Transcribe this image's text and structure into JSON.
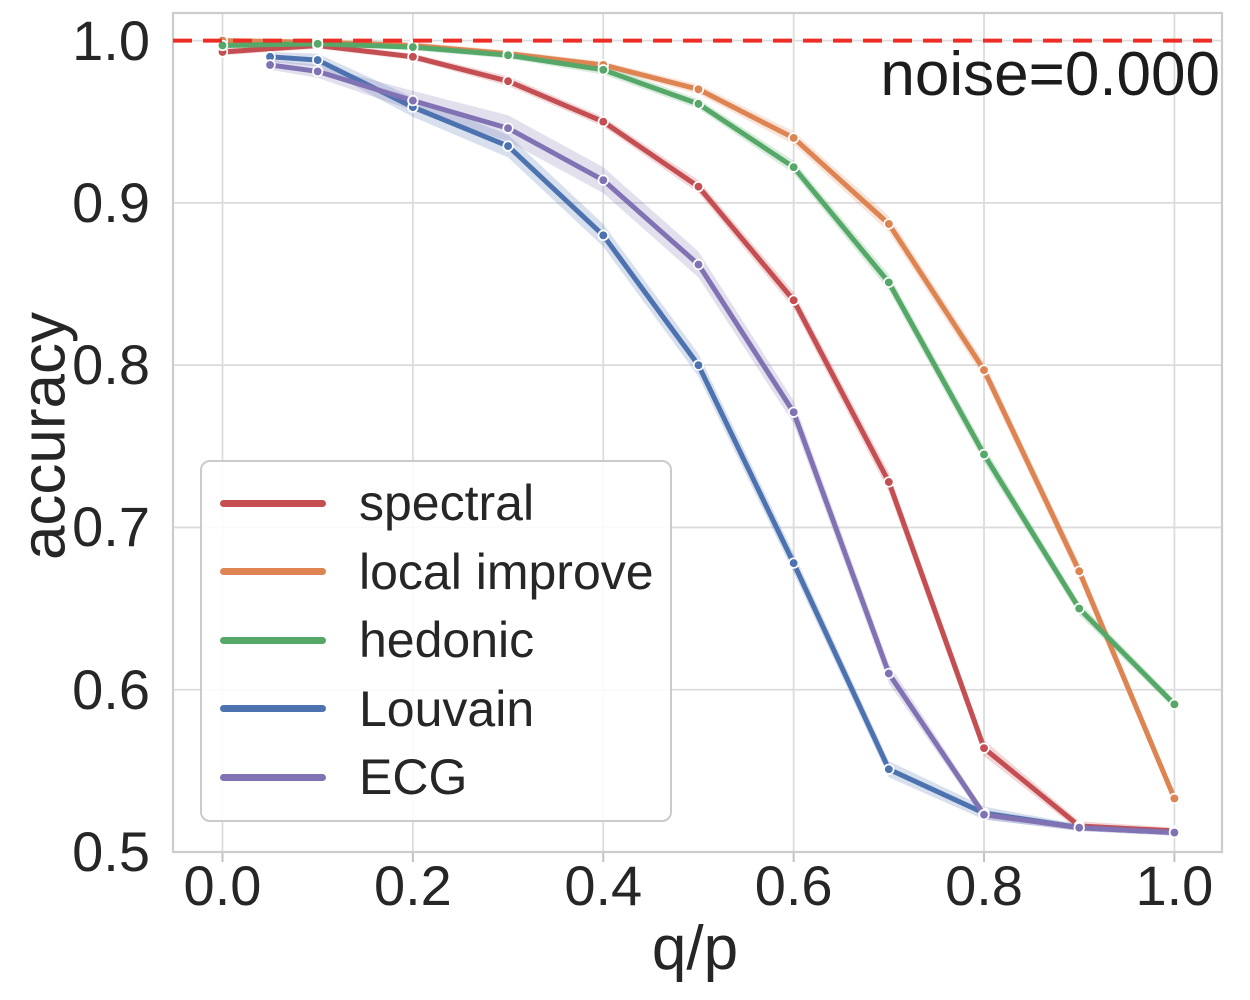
{
  "chart_data": {
    "type": "line",
    "annotation": "noise=0.000",
    "xlabel": "q/p",
    "ylabel": "accuracy",
    "xlim": [
      -0.052,
      1.05
    ],
    "ylim": [
      0.5,
      1.017
    ],
    "xticks": [
      0.0,
      0.2,
      0.4,
      0.6,
      0.8,
      1.0
    ],
    "yticks": [
      0.5,
      0.6,
      0.7,
      0.8,
      0.9,
      1.0
    ],
    "tick_decimals": 1,
    "grid": true,
    "legend_position": "lower left",
    "reference_line": {
      "y": 1.0,
      "color": "#ed2d26",
      "style": "dashed"
    },
    "series": [
      {
        "name": "spectral",
        "color": "#c44e52",
        "x": [
          0.0,
          0.1,
          0.2,
          0.3,
          0.4,
          0.5,
          0.6,
          0.7,
          0.8,
          0.9,
          1.0
        ],
        "y": [
          0.993,
          0.997,
          0.99,
          0.975,
          0.95,
          0.91,
          0.84,
          0.728,
          0.564,
          0.516,
          0.513
        ],
        "band": [
          0.002,
          0.002,
          0.002,
          0.003,
          0.003,
          0.004,
          0.005,
          0.006,
          0.005,
          0.003,
          0.002
        ]
      },
      {
        "name": "local improve",
        "color": "#dd8452",
        "x": [
          0.0,
          0.1,
          0.2,
          0.3,
          0.4,
          0.5,
          0.6,
          0.7,
          0.8,
          0.9,
          1.0
        ],
        "y": [
          1.0,
          0.999,
          0.997,
          0.992,
          0.985,
          0.97,
          0.94,
          0.887,
          0.797,
          0.673,
          0.533
        ],
        "band": [
          0.001,
          0.001,
          0.002,
          0.002,
          0.002,
          0.003,
          0.004,
          0.005,
          0.005,
          0.005,
          0.004
        ]
      },
      {
        "name": "hedonic",
        "color": "#55a868",
        "x": [
          0.0,
          0.1,
          0.2,
          0.3,
          0.4,
          0.5,
          0.6,
          0.7,
          0.8,
          0.9,
          1.0
        ],
        "y": [
          0.997,
          0.998,
          0.996,
          0.991,
          0.982,
          0.961,
          0.922,
          0.851,
          0.745,
          0.65,
          0.591
        ],
        "band": [
          0.002,
          0.001,
          0.002,
          0.002,
          0.003,
          0.003,
          0.004,
          0.005,
          0.005,
          0.004,
          0.003
        ]
      },
      {
        "name": "Louvain",
        "color": "#4c72b0",
        "x": [
          0.05,
          0.1,
          0.2,
          0.3,
          0.4,
          0.5,
          0.6,
          0.7,
          0.8,
          0.9,
          1.0
        ],
        "y": [
          0.99,
          0.988,
          0.959,
          0.935,
          0.88,
          0.8,
          0.678,
          0.551,
          0.524,
          0.515,
          0.512
        ],
        "band": [
          0.003,
          0.004,
          0.006,
          0.007,
          0.007,
          0.007,
          0.006,
          0.005,
          0.004,
          0.002,
          0.002
        ]
      },
      {
        "name": "ECG",
        "color": "#8172b3",
        "x": [
          0.05,
          0.1,
          0.2,
          0.3,
          0.4,
          0.5,
          0.6,
          0.7,
          0.8,
          0.9,
          1.0
        ],
        "y": [
          0.985,
          0.981,
          0.963,
          0.946,
          0.914,
          0.862,
          0.771,
          0.61,
          0.523,
          0.515,
          0.512
        ],
        "band": [
          0.003,
          0.004,
          0.006,
          0.008,
          0.008,
          0.008,
          0.007,
          0.006,
          0.003,
          0.002,
          0.002
        ]
      }
    ]
  },
  "style": {
    "background": "#ffffff",
    "text_color": "#262626",
    "grid_color": "#dcdcdc",
    "spine_color": "#cccccc",
    "tick_mark_color": "#c2c2c2",
    "band_opacity": 0.22,
    "line_width": 5,
    "marker_radius": 4.8,
    "marker_edge_color": "#ffffff"
  }
}
